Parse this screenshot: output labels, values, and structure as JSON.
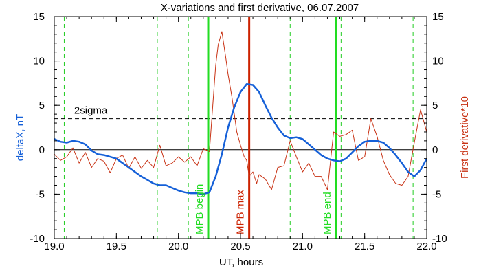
{
  "chart_data": {
    "type": "line",
    "title": "X-variations and first derivative, 06.07.2007",
    "xlabel": "UT, hours",
    "ylabel_left": "deltaX, nT",
    "ylabel_right": "First derivative*10",
    "xlim": [
      19.0,
      22.0
    ],
    "ylim_left": [
      -10,
      15
    ],
    "ylim_right": [
      -10,
      15
    ],
    "x_ticks": [
      "19.0",
      "19.5",
      "20.0",
      "20.5",
      "21.0",
      "21.5",
      "22.0"
    ],
    "y_ticks_left": [
      "15",
      "10",
      "5",
      "0",
      "-5",
      "-10"
    ],
    "y_ticks_right": [
      "15",
      "10",
      "5",
      "0",
      "-5",
      "-10"
    ],
    "colors": {
      "deltaX": "#1560d8",
      "derivative": "#c83214",
      "mpb": "#22dd22",
      "max": "#cc2200",
      "dashed_green": "#22cc22",
      "threshold": "#000000"
    },
    "threshold": {
      "label": "2sigma",
      "value": 3.5
    },
    "zero_line": 0,
    "dashed_verticals": [
      19.08,
      19.83,
      20.08,
      20.9,
      21.31,
      21.89
    ],
    "markers": [
      {
        "label": "MPB begin",
        "x": 20.24
      },
      {
        "label": "MPB max",
        "x": 20.57
      },
      {
        "label": "MPB end",
        "x": 21.27
      }
    ],
    "series": [
      {
        "axis": "left",
        "x": [
          19.0,
          19.05,
          19.1,
          19.15,
          19.2,
          19.25,
          19.3,
          19.35,
          19.4,
          19.45,
          19.5,
          19.55,
          19.6,
          19.65,
          19.7,
          19.75,
          19.8,
          19.85,
          19.9,
          19.95,
          20.0,
          20.05,
          20.1,
          20.15,
          20.2,
          20.25,
          20.3,
          20.35,
          20.4,
          20.45,
          20.5,
          20.55,
          20.6,
          20.65,
          20.7,
          20.75,
          20.8,
          20.85,
          20.9,
          20.95,
          21.0,
          21.05,
          21.1,
          21.15,
          21.2,
          21.25,
          21.3,
          21.35,
          21.4,
          21.45,
          21.5,
          21.55,
          21.6,
          21.65,
          21.7,
          21.75,
          21.8,
          21.85,
          21.9,
          21.95,
          22.0
        ],
        "y": [
          1.2,
          0.9,
          0.8,
          1.0,
          0.9,
          0.6,
          -0.1,
          -0.5,
          -0.6,
          -0.8,
          -1.0,
          -1.5,
          -2.0,
          -2.5,
          -3.0,
          -3.4,
          -3.8,
          -4.0,
          -4.0,
          -4.3,
          -4.6,
          -4.8,
          -4.9,
          -4.9,
          -5.0,
          -4.8,
          -3.0,
          -0.5,
          2.5,
          4.8,
          6.5,
          7.4,
          7.3,
          6.5,
          5.0,
          3.6,
          2.5,
          1.6,
          1.3,
          1.4,
          1.2,
          0.6,
          0.0,
          -0.6,
          -1.0,
          -1.2,
          -1.3,
          -1.0,
          -0.3,
          0.4,
          0.9,
          1.0,
          1.0,
          0.8,
          0.2,
          -0.6,
          -1.5,
          -2.5,
          -3.0,
          -2.3,
          -1.0
        ]
      },
      {
        "axis": "right",
        "x": [
          19.0,
          19.05,
          19.1,
          19.15,
          19.2,
          19.25,
          19.3,
          19.35,
          19.4,
          19.45,
          19.5,
          19.55,
          19.6,
          19.65,
          19.7,
          19.75,
          19.8,
          19.85,
          19.9,
          19.95,
          20.0,
          20.05,
          20.1,
          20.15,
          20.2,
          20.25,
          20.3,
          20.32,
          20.35,
          20.38,
          20.4,
          20.43,
          20.45,
          20.47,
          20.5,
          20.53,
          20.55,
          20.57,
          20.6,
          20.63,
          20.65,
          20.7,
          20.75,
          20.8,
          20.85,
          20.9,
          20.95,
          21.0,
          21.05,
          21.1,
          21.15,
          21.2,
          21.25,
          21.3,
          21.35,
          21.4,
          21.45,
          21.5,
          21.55,
          21.6,
          21.65,
          21.7,
          21.75,
          21.8,
          21.85,
          21.9,
          21.95,
          22.0
        ],
        "y": [
          -0.5,
          -1.2,
          -0.8,
          0.2,
          -1.5,
          -0.3,
          -2.0,
          -1.0,
          -1.3,
          -2.6,
          -1.0,
          -0.6,
          -2.1,
          -0.8,
          -2.1,
          -1.2,
          -2.0,
          0.5,
          -1.8,
          -1.5,
          -0.8,
          -1.4,
          -0.8,
          -1.8,
          0.1,
          -0.2,
          9.5,
          11.8,
          13.3,
          10.5,
          8.5,
          6.0,
          4.0,
          2.0,
          0.5,
          -0.8,
          -1.2,
          -3.0,
          -2.5,
          -3.8,
          -2.8,
          -3.3,
          -4.5,
          -2.0,
          -1.8,
          1.0,
          -0.8,
          -2.5,
          -1.5,
          -3.0,
          -3.0,
          -4.5,
          2.0,
          1.5,
          1.7,
          2.2,
          -1.2,
          -0.8,
          3.5,
          1.5,
          -1.2,
          -2.8,
          -3.8,
          -4.0,
          -3.0,
          0.8,
          4.5,
          2.0
        ]
      }
    ]
  }
}
